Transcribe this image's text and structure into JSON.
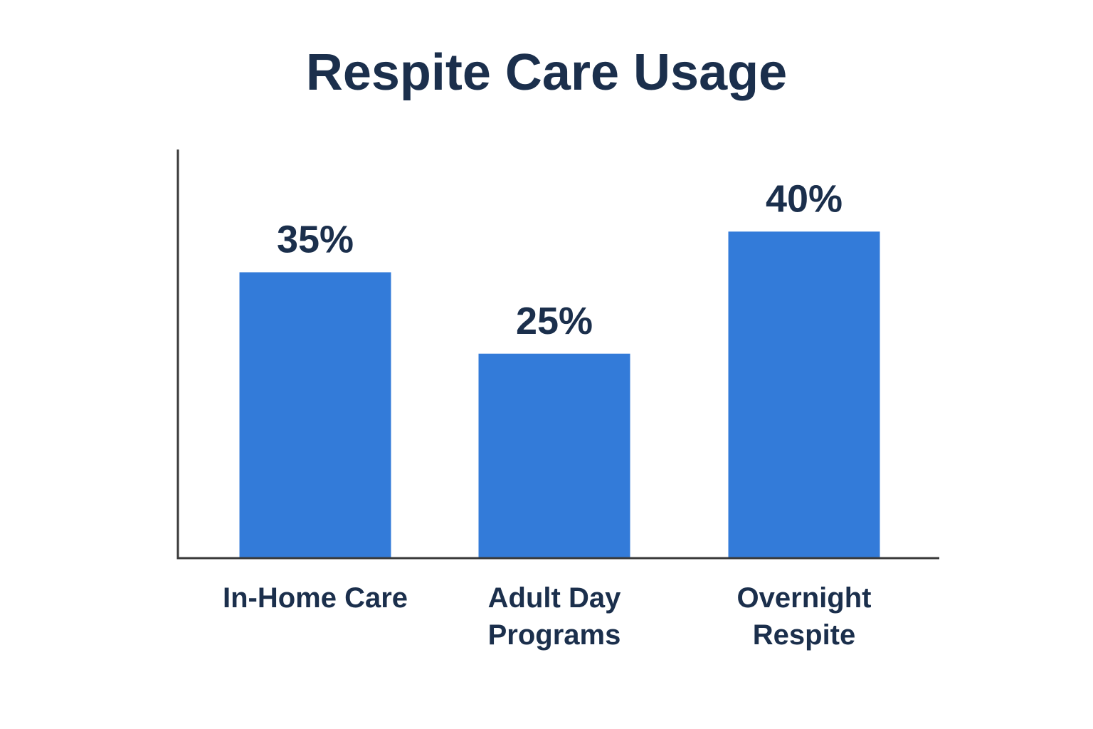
{
  "chart_data": {
    "type": "bar",
    "title": "Respite Care Usage",
    "categories": [
      [
        "In-Home Care"
      ],
      [
        "Adult Day",
        "Programs"
      ],
      [
        "Overnight",
        "Respite"
      ]
    ],
    "values": [
      35,
      25,
      40
    ],
    "value_labels": [
      "35%",
      "25%",
      "40%"
    ],
    "xlabel": "",
    "ylabel": "",
    "grid": false,
    "legend": "none",
    "colors": {
      "bar": "#337bd9",
      "text": "#1b2f4c",
      "axis": "#3a3a3a"
    }
  }
}
